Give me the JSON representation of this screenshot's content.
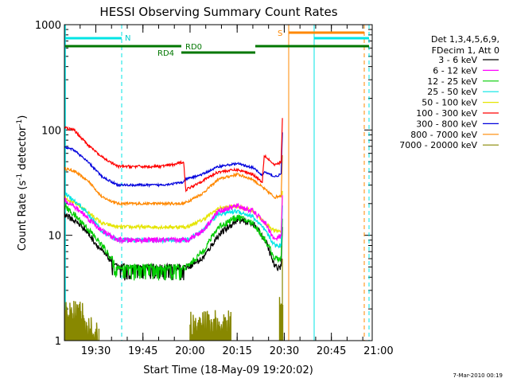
{
  "chart_data": {
    "type": "line",
    "title": "HESSI Observing Summary Count Rates",
    "xlabel": "Start Time (18-May-09 19:20:02)",
    "ylabel_main": "Count Rate (s",
    "ylabel_sup1": "-1",
    "ylabel_mid": " detector",
    "ylabel_sup2": "-1",
    "ylabel_end": ")",
    "yscale": "log",
    "ylim": [
      1,
      1000
    ],
    "xlim_minutes": [
      0,
      98
    ],
    "x_tick_labels": [
      {
        "t": 10,
        "label": "19:30"
      },
      {
        "t": 25,
        "label": "19:45"
      },
      {
        "t": 40,
        "label": "20:00"
      },
      {
        "t": 55,
        "label": "20:15"
      },
      {
        "t": 70,
        "label": "20:30"
      },
      {
        "t": 85,
        "label": "20:45"
      },
      {
        "t": 100,
        "label": "21:00"
      }
    ],
    "y_tick_labels": [
      {
        "v": 1,
        "label": "1"
      },
      {
        "v": 10,
        "label": "10"
      },
      {
        "v": 100,
        "label": "100"
      },
      {
        "v": 1000,
        "label": "1000"
      }
    ],
    "legend_header": [
      "Det 1,3,4,5,6,9,",
      "FDecim 1, Att 0"
    ],
    "series": [
      {
        "name": "3 - 6 keV",
        "color": "#000000",
        "noise": 0.07,
        "points": [
          [
            0,
            16
          ],
          [
            6,
            12
          ],
          [
            12,
            7
          ],
          [
            17,
            5
          ],
          [
            22,
            5
          ],
          [
            30,
            5
          ],
          [
            39,
            5
          ],
          [
            44,
            6
          ],
          [
            49,
            10
          ],
          [
            55,
            14
          ],
          [
            60,
            13
          ],
          [
            64,
            9
          ],
          [
            67,
            5
          ],
          [
            69,
            5
          ]
        ]
      },
      {
        "name": "6 - 12 keV",
        "color": "#ff00ff",
        "noise": 0.06,
        "points": [
          [
            0,
            22
          ],
          [
            6,
            16
          ],
          [
            12,
            11
          ],
          [
            17,
            9
          ],
          [
            30,
            9
          ],
          [
            39,
            9
          ],
          [
            44,
            11
          ],
          [
            49,
            17
          ],
          [
            55,
            19
          ],
          [
            60,
            17
          ],
          [
            64,
            13
          ],
          [
            67,
            9
          ],
          [
            69,
            10
          ]
        ]
      },
      {
        "name": "12 - 25 keV",
        "color": "#00cc00",
        "noise": 0.07,
        "points": [
          [
            0,
            19
          ],
          [
            6,
            13
          ],
          [
            12,
            8
          ],
          [
            17,
            5
          ],
          [
            30,
            5
          ],
          [
            39,
            5
          ],
          [
            44,
            7
          ],
          [
            49,
            12
          ],
          [
            55,
            15
          ],
          [
            60,
            13
          ],
          [
            64,
            9
          ],
          [
            67,
            6
          ],
          [
            69,
            6
          ]
        ]
      },
      {
        "name": "25 - 50 keV",
        "color": "#00e5e5",
        "noise": 0.05,
        "points": [
          [
            0,
            25
          ],
          [
            6,
            18
          ],
          [
            12,
            11
          ],
          [
            17,
            9
          ],
          [
            30,
            9
          ],
          [
            39,
            9
          ],
          [
            44,
            11
          ],
          [
            49,
            16
          ],
          [
            55,
            17
          ],
          [
            60,
            15
          ],
          [
            64,
            11
          ],
          [
            67,
            8
          ],
          [
            69,
            8
          ]
        ]
      },
      {
        "name": "50 - 100 keV",
        "color": "#e5e500",
        "noise": 0.04,
        "points": [
          [
            0,
            23
          ],
          [
            6,
            18
          ],
          [
            12,
            13
          ],
          [
            17,
            12
          ],
          [
            30,
            12
          ],
          [
            39,
            12
          ],
          [
            44,
            14
          ],
          [
            49,
            18
          ],
          [
            55,
            19
          ],
          [
            60,
            17
          ],
          [
            64,
            13
          ],
          [
            67,
            11
          ],
          [
            69,
            11
          ]
        ]
      },
      {
        "name": "100 - 300 keV",
        "color": "#ff0000",
        "noise": 0.03,
        "points": [
          [
            0,
            105
          ],
          [
            3,
            100
          ],
          [
            8,
            70
          ],
          [
            12,
            55
          ],
          [
            17,
            45
          ],
          [
            30,
            45
          ],
          [
            35,
            47
          ],
          [
            38,
            50
          ],
          [
            38.6,
            27
          ],
          [
            44,
            33
          ],
          [
            49,
            40
          ],
          [
            55,
            42
          ],
          [
            60,
            38
          ],
          [
            63,
            32
          ],
          [
            63.6,
            58
          ],
          [
            67,
            46
          ],
          [
            69,
            50
          ]
        ]
      },
      {
        "name": "300 - 800 keV",
        "color": "#0000dd",
        "noise": 0.025,
        "points": [
          [
            0,
            68
          ],
          [
            3,
            65
          ],
          [
            8,
            48
          ],
          [
            12,
            36
          ],
          [
            17,
            30
          ],
          [
            30,
            30
          ],
          [
            35,
            31
          ],
          [
            38,
            32
          ],
          [
            38.6,
            34
          ],
          [
            44,
            38
          ],
          [
            49,
            45
          ],
          [
            55,
            48
          ],
          [
            60,
            44
          ],
          [
            63,
            37
          ],
          [
            63.6,
            40
          ],
          [
            67,
            36
          ],
          [
            69,
            38
          ]
        ]
      },
      {
        "name": "800 - 7000 keV",
        "color": "#ff8800",
        "noise": 0.03,
        "points": [
          [
            0,
            43
          ],
          [
            3,
            41
          ],
          [
            8,
            32
          ],
          [
            12,
            23
          ],
          [
            17,
            20
          ],
          [
            30,
            20
          ],
          [
            38,
            20
          ],
          [
            44,
            25
          ],
          [
            49,
            34
          ],
          [
            55,
            38
          ],
          [
            60,
            34
          ],
          [
            64,
            27
          ],
          [
            67,
            23
          ],
          [
            69,
            24
          ]
        ]
      },
      {
        "name": "7000 - 20000 keV",
        "color": "#888800",
        "noise": 0,
        "points": []
      }
    ],
    "flags": [
      {
        "label": "N",
        "color": "#00e5e5"
      },
      {
        "label": "RD0",
        "color": "#007700"
      },
      {
        "label": "RD4",
        "color": "#007700"
      },
      {
        "label": "S",
        "color": "#ff8800"
      }
    ],
    "timestamp": "7-Mar-2010 00:19"
  }
}
